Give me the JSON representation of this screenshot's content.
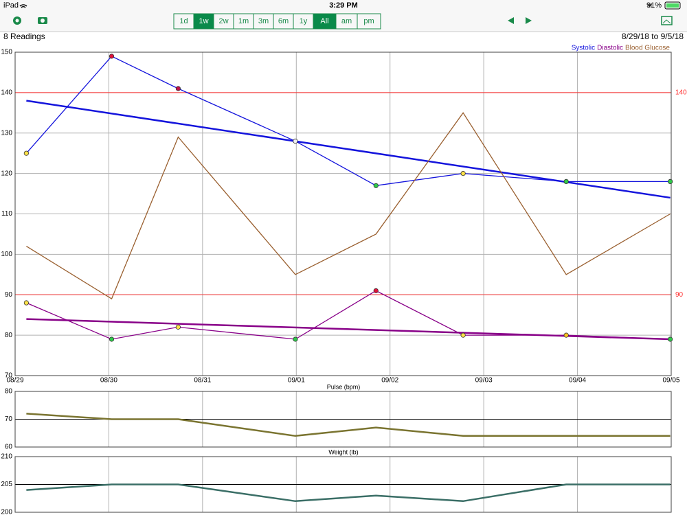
{
  "status_bar": {
    "device": "iPad",
    "time": "3:29 PM",
    "battery": "91%"
  },
  "toolbar": {
    "periods": [
      "1d",
      "1w",
      "2w",
      "1m",
      "3m",
      "6m",
      "1y"
    ],
    "selected_period": "1w",
    "filters": [
      "All",
      "am",
      "pm"
    ],
    "selected_filter": "All"
  },
  "header": {
    "count": "8 Readings",
    "range": "8/29/18 to 9/5/18"
  },
  "chart_data": {
    "type": "line",
    "legend": "top-right",
    "x": [
      0.12,
      1.03,
      1.74,
      2.99,
      3.85,
      4.78,
      5.88,
      6.99
    ],
    "xlim": [
      0,
      7
    ],
    "xticks": [
      {
        "value": 0,
        "label": "08/29"
      },
      {
        "value": 1,
        "label": "08/30"
      },
      {
        "value": 2,
        "label": "08/31"
      },
      {
        "value": 3,
        "label": "09/01"
      },
      {
        "value": 4,
        "label": "09/02"
      },
      {
        "value": 5,
        "label": "09/03"
      },
      {
        "value": 6,
        "label": "09/04"
      },
      {
        "value": 7,
        "label": "09/05"
      }
    ],
    "panels": [
      {
        "ylim": [
          70,
          150
        ],
        "yticks": [
          70,
          80,
          90,
          100,
          110,
          120,
          130,
          140,
          150
        ],
        "ref_lines": [
          140,
          90
        ],
        "ref_color": "#ff3030",
        "ref_labels": true,
        "series": [
          {
            "name": "Systolic",
            "color": "#1414dc",
            "values": [
              125,
              149,
              141,
              128,
              117,
              120,
              118,
              118
            ],
            "trend": [
              138,
              114
            ],
            "marker_colors": [
              "#ffe24a",
              "#e0103a",
              "#c0104a",
              "#f0f0f0",
              "#2fc84a",
              "#ffe24a",
              "#2fc84a",
              "#2fc84a"
            ]
          },
          {
            "name": "Diastolic",
            "color": "#880088",
            "values": [
              88,
              79,
              82,
              79,
              91,
              80,
              80,
              79
            ],
            "trend": [
              84,
              79
            ],
            "marker_colors": [
              "#ffe24a",
              "#2fc84a",
              "#ffe24a",
              "#2fc84a",
              "#e0103a",
              "#ffe24a",
              "#ffc020",
              "#2fc84a"
            ]
          },
          {
            "name": "Blood Glucose",
            "color": "#9a6030",
            "values": [
              102,
              89,
              129,
              95,
              105,
              135,
              95,
              110
            ]
          }
        ]
      },
      {
        "title": "Pulse (bpm)",
        "ylim": [
          60,
          80
        ],
        "yticks": [
          60,
          70,
          80
        ],
        "ref_lines": [
          70
        ],
        "ref_color": "#000000",
        "ref_labels": false,
        "series": [
          {
            "color": "#7a7430",
            "values": [
              72,
              70,
              70,
              64,
              67,
              64,
              64,
              64
            ]
          }
        ]
      },
      {
        "title": "Weight (lb)",
        "ylim": [
          200,
          210
        ],
        "yticks": [
          200,
          205,
          210
        ],
        "ref_lines": [
          205
        ],
        "ref_color": "#000000",
        "ref_labels": false,
        "series": [
          {
            "color": "#3a6e66",
            "values": [
              204,
              205,
              205,
              202,
              203,
              202,
              205,
              205
            ]
          }
        ]
      }
    ]
  }
}
